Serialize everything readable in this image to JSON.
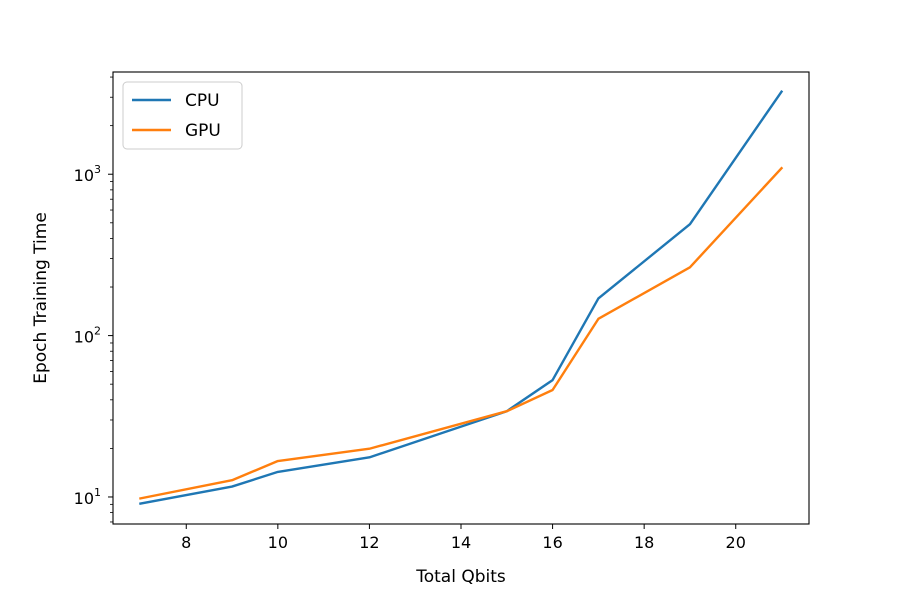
{
  "chart_data": {
    "type": "line",
    "xlabel": "Total Qbits",
    "ylabel": "Epoch Training Time",
    "yscale": "log",
    "xlim": [
      6.4,
      21.6
    ],
    "ylim": [
      6.8,
      4300
    ],
    "xticks": [
      8,
      10,
      12,
      14,
      16,
      18,
      20
    ],
    "yticks": [
      {
        "value": 10,
        "base": "10",
        "exp": "1"
      },
      {
        "value": 100,
        "base": "10",
        "exp": "2"
      },
      {
        "value": 1000,
        "base": "10",
        "exp": "3"
      }
    ],
    "legend_position": "top-left",
    "grid": false,
    "series": [
      {
        "name": "CPU",
        "color": "#1f77b4",
        "x": [
          7,
          9,
          10,
          12,
          15,
          16,
          17,
          19,
          21
        ],
        "y": [
          9.1,
          11.6,
          14.3,
          17.6,
          34,
          53,
          170,
          490,
          3250
        ]
      },
      {
        "name": "GPU",
        "color": "#ff7f0e",
        "x": [
          7,
          9,
          10,
          12,
          15,
          16,
          17,
          19,
          21
        ],
        "y": [
          9.8,
          12.7,
          16.7,
          19.9,
          34,
          46,
          127,
          265,
          1090
        ]
      }
    ]
  }
}
